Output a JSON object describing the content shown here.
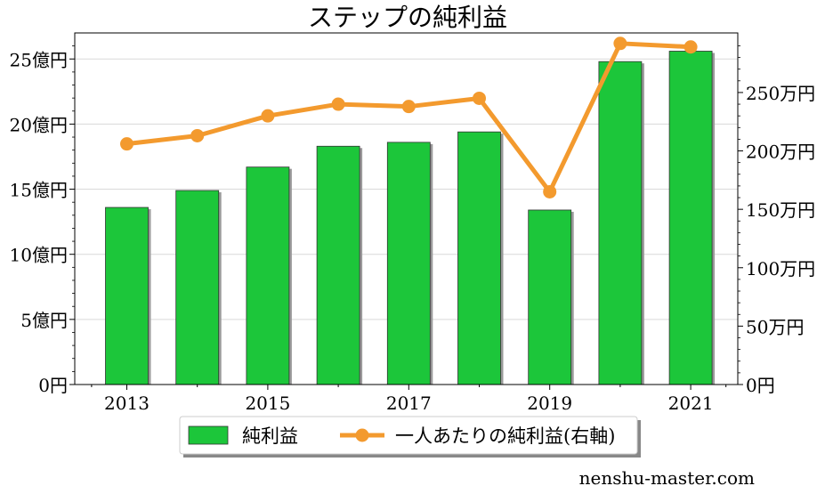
{
  "chart_data": {
    "type": "bar+line",
    "title": "ステップの純利益",
    "categories": [
      "2013",
      "2014",
      "2015",
      "2016",
      "2017",
      "2018",
      "2019",
      "2020",
      "2021"
    ],
    "x_tick_labels": [
      "2013",
      "2015",
      "2017",
      "2019",
      "2021"
    ],
    "series": [
      {
        "name": "純利益",
        "type": "bar",
        "axis": "left",
        "unit": "億円",
        "color": "#1cc63a",
        "values": [
          13.6,
          14.9,
          16.7,
          18.3,
          18.6,
          19.4,
          13.4,
          24.8,
          25.6
        ]
      },
      {
        "name": "一人あたりの純利益(右軸)",
        "type": "line",
        "axis": "right",
        "unit": "万円",
        "color": "#f39a2e",
        "values": [
          206,
          213,
          230,
          240,
          238,
          245,
          165,
          292,
          289
        ]
      }
    ],
    "y_left": {
      "min": 0,
      "max": 27,
      "ticks": [
        0,
        5,
        10,
        15,
        20,
        25
      ],
      "tick_labels": [
        "0円",
        "5億円",
        "10億円",
        "15億円",
        "20億円",
        "25億円"
      ]
    },
    "y_right": {
      "min": 0,
      "max": 301,
      "ticks": [
        0,
        50,
        100,
        150,
        200,
        250
      ],
      "tick_labels": [
        "0円",
        "50万円",
        "100万円",
        "150万円",
        "200万円",
        "250万円"
      ]
    },
    "grid": true,
    "legend": "bottom-center"
  },
  "watermark": "nenshu-master.com"
}
